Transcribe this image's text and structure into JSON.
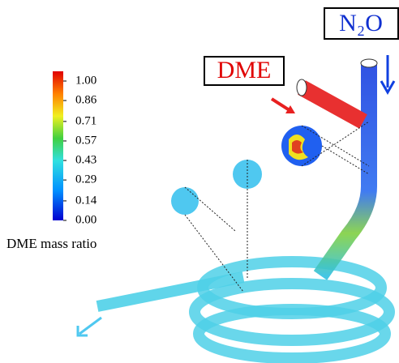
{
  "legend": {
    "title": "DME mass ratio",
    "range": [
      0,
      1
    ],
    "ticks": [
      {
        "value": 1,
        "label": "1.00"
      },
      0.86,
      0.71,
      0.57,
      0.43,
      0.29,
      0.14,
      {
        "value": 0,
        "label": "0.00"
      }
    ]
  },
  "labels": {
    "dme": "DME",
    "n2o": "N₂O"
  }
}
